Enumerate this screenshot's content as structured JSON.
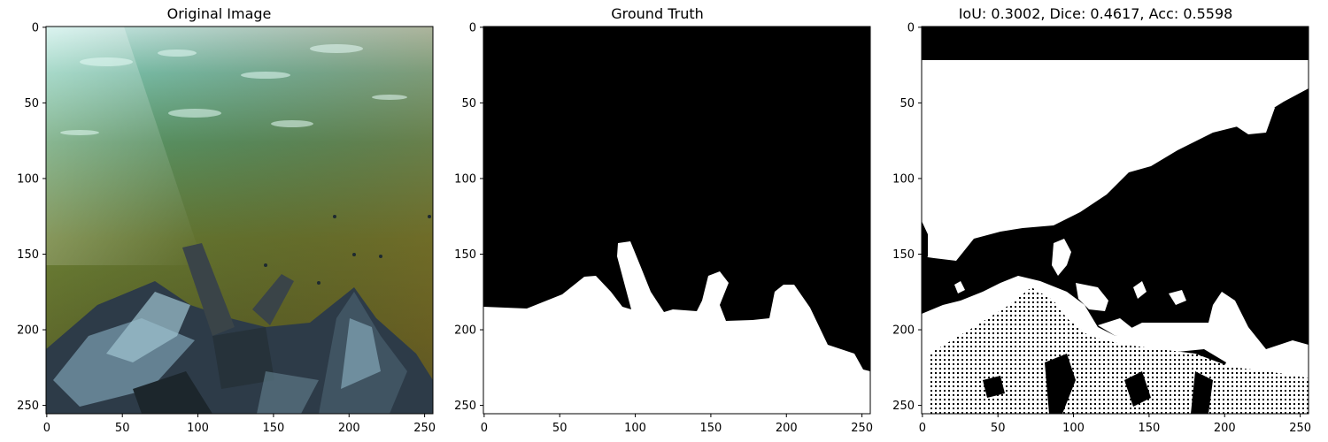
{
  "panels": [
    {
      "title": "Original Image",
      "kind": "photo"
    },
    {
      "title": "Ground Truth",
      "kind": "ground-truth-mask"
    },
    {
      "title": "IoU: 0.3002, Dice: 0.4617, Acc: 0.5598",
      "kind": "prediction-mask"
    }
  ],
  "metrics": {
    "iou": 0.3002,
    "dice": 0.4617,
    "acc": 0.5598
  },
  "axes": {
    "x_ticks": [
      "0",
      "50",
      "100",
      "150",
      "200",
      "250"
    ],
    "y_ticks": [
      "0",
      "50",
      "100",
      "150",
      "200",
      "250"
    ],
    "range": [
      0,
      256
    ]
  },
  "colors": {
    "mask_fg": "#ffffff",
    "mask_bg": "#000000"
  }
}
